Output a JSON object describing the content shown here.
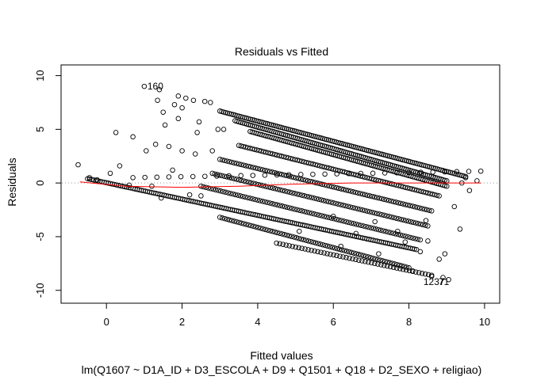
{
  "chart_data": {
    "type": "scatter",
    "title": "Residuals vs Fitted",
    "xlabel": "Fitted values",
    "subtitle": "lm(Q1607 ~ D1A_ID + D3_ESCOLA + D9 + Q1501 + Q18 + D2_SEXO + religiao)",
    "ylabel": "Residuals",
    "xlim": [
      -1.2,
      10.4
    ],
    "ylim": [
      -11.2,
      11.0
    ],
    "x_ticks": [
      0,
      2,
      4,
      6,
      8,
      10
    ],
    "x_tick_labels": [
      "0",
      "2",
      "4",
      "6",
      "8",
      "10"
    ],
    "y_ticks": [
      -10,
      -5,
      0,
      5,
      10
    ],
    "y_tick_labels": [
      "-10",
      "-5",
      "0",
      "5",
      "10"
    ],
    "grid": false,
    "reference_line": {
      "y": 0,
      "style": "dotted",
      "color": "#999999"
    },
    "smoother_color": "#ff0000",
    "point_color": "#000000",
    "point_shape": "open-circle",
    "annotations": [
      {
        "label": "160",
        "x": 1.0,
        "y": 9.0
      },
      {
        "label": "1237",
        "x": 8.3,
        "y": -9.2
      },
      {
        "label": "71",
        "x": 8.7,
        "y": -9.2
      }
    ],
    "smoother": [
      {
        "x": -0.7,
        "y": 0.1
      },
      {
        "x": 0.5,
        "y": -0.3
      },
      {
        "x": 2.0,
        "y": -0.4
      },
      {
        "x": 3.5,
        "y": -0.3
      },
      {
        "x": 5.0,
        "y": -0.1
      },
      {
        "x": 6.5,
        "y": 0.0
      },
      {
        "x": 8.0,
        "y": 0.0
      },
      {
        "x": 9.9,
        "y": 0.0
      }
    ],
    "bands": [
      {
        "x0": 0.7,
        "y0": 0.5,
        "x1": 9.9,
        "y1": 1.1,
        "n": 30
      },
      {
        "x0": 3.0,
        "y0": 6.7,
        "x1": 9.5,
        "y1": 0.6,
        "n": 130
      },
      {
        "x0": 3.4,
        "y0": 5.8,
        "x1": 9.0,
        "y1": 0.2,
        "n": 110
      },
      {
        "x0": 3.8,
        "y0": 4.8,
        "x1": 9.0,
        "y1": -0.3,
        "n": 100
      },
      {
        "x0": 3.5,
        "y0": 3.5,
        "x1": 8.8,
        "y1": -1.2,
        "n": 90
      },
      {
        "x0": 3.0,
        "y0": 2.2,
        "x1": 8.6,
        "y1": -2.6,
        "n": 90
      },
      {
        "x0": 2.8,
        "y0": 0.9,
        "x1": 8.5,
        "y1": -4.0,
        "n": 90
      },
      {
        "x0": 2.5,
        "y0": -0.3,
        "x1": 8.3,
        "y1": -5.3,
        "n": 90
      },
      {
        "x0": -0.5,
        "y0": 0.4,
        "x1": 8.2,
        "y1": -6.2,
        "n": 160
      },
      {
        "x0": 3.0,
        "y0": -3.2,
        "x1": 8.0,
        "y1": -7.9,
        "n": 80
      },
      {
        "x0": 4.5,
        "y0": -5.6,
        "x1": 8.6,
        "y1": -8.6,
        "n": 50
      }
    ],
    "points": [
      [
        -0.75,
        1.7
      ],
      [
        -0.45,
        0.5
      ],
      [
        -0.25,
        0.3
      ],
      [
        0.1,
        0.9
      ],
      [
        0.25,
        4.7
      ],
      [
        0.35,
        1.6
      ],
      [
        0.7,
        4.3
      ],
      [
        1.0,
        9.0
      ],
      [
        1.05,
        3.0
      ],
      [
        1.3,
        3.6
      ],
      [
        1.35,
        7.7
      ],
      [
        1.4,
        8.7
      ],
      [
        1.5,
        6.6
      ],
      [
        1.55,
        5.4
      ],
      [
        1.65,
        3.4
      ],
      [
        1.75,
        1.2
      ],
      [
        1.8,
        7.3
      ],
      [
        1.9,
        8.1
      ],
      [
        1.9,
        6.0
      ],
      [
        2.0,
        7.0
      ],
      [
        2.0,
        3.0
      ],
      [
        2.1,
        7.9
      ],
      [
        2.3,
        7.7
      ],
      [
        2.35,
        2.7
      ],
      [
        2.4,
        4.7
      ],
      [
        2.45,
        5.7
      ],
      [
        2.6,
        7.6
      ],
      [
        2.75,
        7.5
      ],
      [
        2.8,
        3.0
      ],
      [
        2.95,
        5.0
      ],
      [
        3.1,
        5.0
      ],
      [
        1.2,
        -0.3
      ],
      [
        0.6,
        -0.2
      ],
      [
        1.45,
        -1.4
      ],
      [
        2.2,
        -1.1
      ],
      [
        2.5,
        -1.2
      ],
      [
        6.0,
        -3.1
      ],
      [
        6.6,
        -4.7
      ],
      [
        7.1,
        -3.6
      ],
      [
        7.2,
        -6.6
      ],
      [
        7.7,
        -4.5
      ],
      [
        7.9,
        -5.5
      ],
      [
        8.1,
        -8.2
      ],
      [
        8.3,
        -6.4
      ],
      [
        8.5,
        -5.4
      ],
      [
        8.6,
        -8.7
      ],
      [
        8.8,
        -7.1
      ],
      [
        8.9,
        -8.8
      ],
      [
        9.05,
        -9.0
      ],
      [
        9.2,
        -2.2
      ],
      [
        9.35,
        -4.3
      ],
      [
        9.5,
        0.5
      ],
      [
        9.6,
        -0.7
      ],
      [
        9.8,
        0.2
      ],
      [
        5.1,
        -4.5
      ],
      [
        6.2,
        -5.9
      ],
      [
        8.45,
        -3.5
      ],
      [
        8.95,
        -6.6
      ],
      [
        9.4,
        0.0
      ]
    ]
  }
}
